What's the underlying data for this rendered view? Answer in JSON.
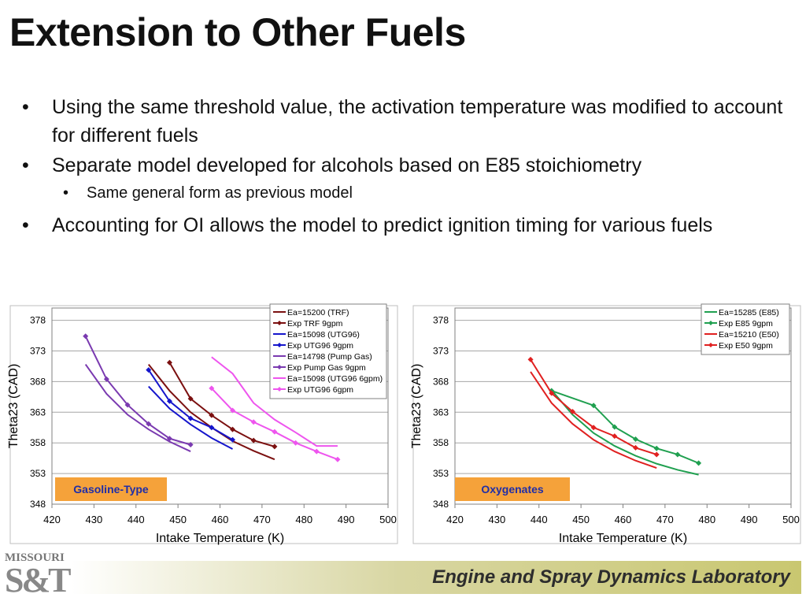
{
  "slide": {
    "title": "Extension to Other Fuels",
    "bullets": [
      "Using the same threshold value, the activation temperature was modified to account for different fuels",
      "Separate model developed for alcohols based on E85 stoichiometry",
      "Same general form as previous model",
      "Accounting for OI allows the model to predict ignition timing for various fuels"
    ],
    "footer": "Engine and Spray Dynamics Laboratory",
    "logo": {
      "top": "MISSOURI",
      "main": "S&T"
    }
  },
  "chart_data": [
    {
      "type": "line",
      "xlabel": "Intake Temperature (K)",
      "ylabel": "Theta23 (CAD)",
      "xlim": [
        420,
        500
      ],
      "ylim": [
        348,
        380
      ],
      "xticks": [
        420,
        430,
        440,
        450,
        460,
        470,
        480,
        490,
        500
      ],
      "yticks": [
        348,
        353,
        358,
        363,
        368,
        373,
        378
      ],
      "grid": "horizontal",
      "legend_position": "top-right",
      "annotation": "Gasoline-Type",
      "series": [
        {
          "name": "Ea=15200 (TRF)",
          "color": "#7b1010",
          "style": "line",
          "x": [
            443,
            448,
            453,
            458,
            463,
            468,
            473
          ],
          "y": [
            370.8,
            366.5,
            363.0,
            360.5,
            358.3,
            356.7,
            355.3
          ]
        },
        {
          "name": "Exp TRF 9gpm",
          "color": "#7b1010",
          "style": "marker",
          "x": [
            448,
            453,
            458,
            463,
            468,
            473
          ],
          "y": [
            371.1,
            365.2,
            362.5,
            360.2,
            358.4,
            357.4
          ]
        },
        {
          "name": "Ea=15098 (UTG96)",
          "color": "#1515cc",
          "style": "line",
          "x": [
            443,
            448,
            453,
            458,
            463
          ],
          "y": [
            367.2,
            363.6,
            361.0,
            358.8,
            357.0
          ]
        },
        {
          "name": "Exp UTG96 9gpm",
          "color": "#1515cc",
          "style": "marker",
          "x": [
            443,
            448,
            453,
            458,
            463
          ],
          "y": [
            369.9,
            364.8,
            362.0,
            360.5,
            358.5
          ]
        },
        {
          "name": "Ea=14798 (Pump Gas)",
          "color": "#7a3ab0",
          "style": "line",
          "x": [
            428,
            433,
            438,
            443,
            448,
            453
          ],
          "y": [
            370.8,
            366.0,
            362.6,
            360.2,
            358.2,
            356.6
          ]
        },
        {
          "name": "Exp Pump Gas 9gpm",
          "color": "#7a3ab0",
          "style": "marker",
          "x": [
            428,
            433,
            438,
            443,
            448,
            453
          ],
          "y": [
            375.4,
            368.4,
            364.2,
            361.1,
            358.7,
            357.7
          ]
        },
        {
          "name": "Ea=15098 (UTG96 6gpm)",
          "color": "#ee55ee",
          "style": "line",
          "x": [
            458,
            463,
            468,
            473,
            478,
            483,
            488
          ],
          "y": [
            372.0,
            369.3,
            364.5,
            361.8,
            359.7,
            357.5,
            357.5
          ]
        },
        {
          "name": "Exp UTG96 6gpm",
          "color": "#ee55ee",
          "style": "marker",
          "x": [
            458,
            463,
            468,
            473,
            478,
            483,
            488
          ],
          "y": [
            366.9,
            363.3,
            361.4,
            359.8,
            358.0,
            356.6,
            355.3
          ]
        }
      ]
    },
    {
      "type": "line",
      "xlabel": "Intake Temperature (K)",
      "ylabel": "Theta23 (CAD)",
      "xlim": [
        420,
        500
      ],
      "ylim": [
        348,
        380
      ],
      "xticks": [
        420,
        430,
        440,
        450,
        460,
        470,
        480,
        490,
        500
      ],
      "yticks": [
        348,
        353,
        358,
        363,
        368,
        373,
        378
      ],
      "grid": "horizontal",
      "legend_position": "top-right",
      "annotation": "Oxygenates",
      "series": [
        {
          "name": "Ea=15285 (E85)",
          "color": "#20a050",
          "style": "line",
          "x": [
            443,
            448,
            453,
            458,
            463,
            468,
            473,
            478
          ],
          "y": [
            366.6,
            362.6,
            359.6,
            357.5,
            355.9,
            354.6,
            353.6,
            352.8
          ]
        },
        {
          "name": "Exp E85 9gpm",
          "color": "#20a050",
          "style": "marker",
          "x": [
            443,
            453,
            458,
            463,
            468,
            473,
            478
          ],
          "y": [
            366.5,
            364.1,
            360.6,
            358.6,
            357.1,
            356.1,
            354.7
          ]
        },
        {
          "name": "Ea=15210 (E50)",
          "color": "#e02020",
          "style": "line",
          "x": [
            438,
            443,
            448,
            453,
            458,
            463,
            468
          ],
          "y": [
            369.6,
            364.5,
            361.1,
            358.5,
            356.6,
            355.1,
            353.9
          ]
        },
        {
          "name": "Exp E50 9gpm",
          "color": "#e02020",
          "style": "marker",
          "x": [
            438,
            443,
            448,
            453,
            458,
            463,
            468
          ],
          "y": [
            371.6,
            366.1,
            363.1,
            360.5,
            359.1,
            357.2,
            356.1
          ]
        }
      ]
    }
  ]
}
